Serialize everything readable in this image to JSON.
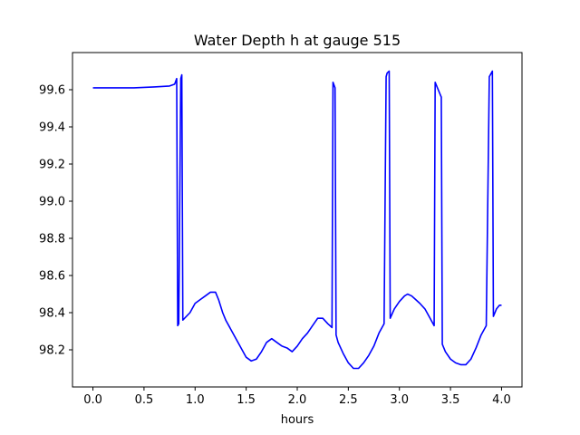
{
  "chart_data": {
    "type": "line",
    "title": "Water Depth h at gauge 515",
    "xlabel": "hours",
    "ylabel": "",
    "xlim": [
      -0.2,
      4.2
    ],
    "ylim": [
      98.0,
      99.8
    ],
    "xticks": [
      0.0,
      0.5,
      1.0,
      1.5,
      2.0,
      2.5,
      3.0,
      3.5,
      4.0
    ],
    "xtick_labels": [
      "0.0",
      "0.5",
      "1.0",
      "1.5",
      "2.0",
      "2.5",
      "3.0",
      "3.5",
      "4.0"
    ],
    "yticks": [
      98.2,
      98.4,
      98.6,
      98.8,
      99.0,
      99.2,
      99.4,
      99.6
    ],
    "ytick_labels": [
      "98.2",
      "98.4",
      "98.6",
      "98.8",
      "99.0",
      "99.2",
      "99.4",
      "99.6"
    ],
    "grid": false,
    "series": [
      {
        "color": "#0000ff",
        "x": [
          0.0,
          0.2,
          0.4,
          0.6,
          0.75,
          0.8,
          0.82,
          0.83,
          0.84,
          0.86,
          0.87,
          0.88,
          0.95,
          1.0,
          1.05,
          1.1,
          1.15,
          1.2,
          1.23,
          1.27,
          1.3,
          1.35,
          1.4,
          1.45,
          1.5,
          1.55,
          1.6,
          1.65,
          1.7,
          1.75,
          1.8,
          1.85,
          1.9,
          1.95,
          2.0,
          2.05,
          2.1,
          2.15,
          2.2,
          2.25,
          2.3,
          2.34,
          2.35,
          2.37,
          2.38,
          2.4,
          2.45,
          2.5,
          2.55,
          2.6,
          2.65,
          2.7,
          2.75,
          2.8,
          2.85,
          2.87,
          2.88,
          2.9,
          2.91,
          2.95,
          3.0,
          3.05,
          3.08,
          3.12,
          3.16,
          3.2,
          3.25,
          3.3,
          3.34,
          3.35,
          3.38,
          3.41,
          3.42,
          3.45,
          3.5,
          3.55,
          3.6,
          3.65,
          3.7,
          3.75,
          3.8,
          3.85,
          3.88,
          3.89,
          3.91,
          3.92,
          3.95,
          3.98,
          4.0
        ],
        "y": [
          99.61,
          99.61,
          99.61,
          99.615,
          99.62,
          99.63,
          99.66,
          98.33,
          98.34,
          99.66,
          99.68,
          98.36,
          98.4,
          98.45,
          98.47,
          98.49,
          98.51,
          98.51,
          98.47,
          98.4,
          98.36,
          98.31,
          98.26,
          98.21,
          98.16,
          98.14,
          98.15,
          98.19,
          98.24,
          98.26,
          98.24,
          98.22,
          98.21,
          98.19,
          98.22,
          98.26,
          98.29,
          98.33,
          98.37,
          98.37,
          98.34,
          98.32,
          99.64,
          99.61,
          98.28,
          98.24,
          98.18,
          98.13,
          98.1,
          98.1,
          98.13,
          98.17,
          98.22,
          98.29,
          98.34,
          99.67,
          99.69,
          99.7,
          98.37,
          98.42,
          98.46,
          98.49,
          98.5,
          98.49,
          98.47,
          98.45,
          98.42,
          98.37,
          98.33,
          99.64,
          99.6,
          99.56,
          98.23,
          98.19,
          98.15,
          98.13,
          98.12,
          98.12,
          98.15,
          98.21,
          98.28,
          98.33,
          99.67,
          99.68,
          99.7,
          98.38,
          98.42,
          98.44,
          98.44
        ]
      }
    ]
  }
}
